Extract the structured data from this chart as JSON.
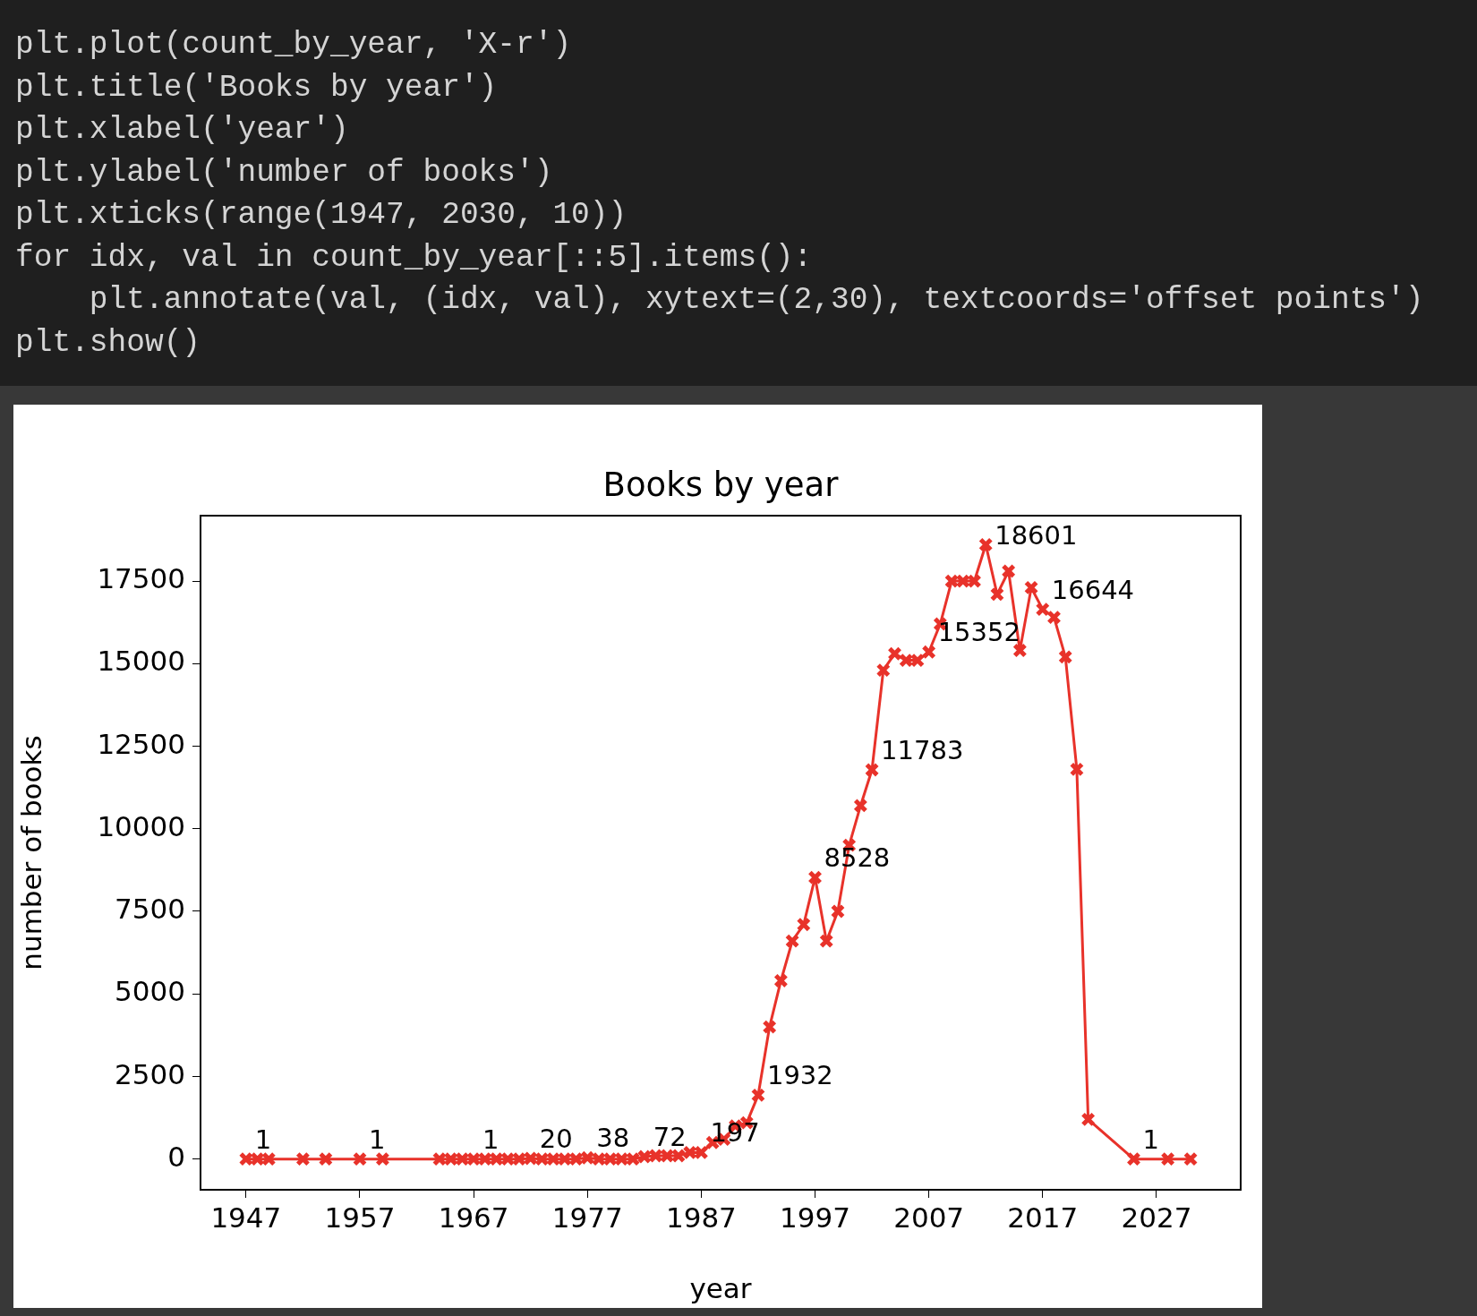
{
  "chart_data": {
    "type": "line",
    "title": "Books by year",
    "xlabel": "year",
    "ylabel": "number of books",
    "x": [
      1947,
      1948,
      1949,
      1952,
      1954,
      1957,
      1959,
      1964,
      1965,
      1966,
      1967,
      1968,
      1969,
      1970,
      1971,
      1972,
      1973,
      1974,
      1975,
      1976,
      1977,
      1978,
      1979,
      1980,
      1981,
      1982,
      1983,
      1984,
      1985,
      1986,
      1987,
      1988,
      1989,
      1990,
      1991,
      1992,
      1993,
      1994,
      1995,
      1996,
      1997,
      1998,
      1999,
      2000,
      2001,
      2002,
      2003,
      2004,
      2005,
      2006,
      2007,
      2008,
      2009,
      2010,
      2011,
      2012,
      2013,
      2014,
      2015,
      2016,
      2017,
      2018,
      2019,
      2020,
      2021,
      2025,
      2028,
      2030
    ],
    "series": [
      {
        "color": "#e8322a",
        "values": [
          1,
          0,
          0,
          0,
          0,
          1,
          0,
          0,
          0,
          0,
          1,
          0,
          0,
          0,
          0,
          20,
          0,
          0,
          0,
          0,
          38,
          0,
          0,
          0,
          0,
          72,
          100,
          100,
          100,
          200,
          197,
          500,
          600,
          1000,
          1100,
          1932,
          4000,
          5400,
          6600,
          7100,
          8528,
          6600,
          7500,
          9500,
          10700,
          11783,
          14800,
          15300,
          15100,
          15100,
          15352,
          16200,
          17500,
          17500,
          17500,
          18601,
          17100,
          17800,
          15400,
          17300,
          16644,
          16400,
          15200,
          11800,
          1200,
          1,
          0,
          0
        ],
        "value_labels": [
          "1",
          null,
          null,
          null,
          null,
          "1",
          null,
          null,
          null,
          null,
          "1",
          null,
          null,
          null,
          null,
          "20",
          null,
          null,
          null,
          null,
          "38",
          null,
          null,
          null,
          null,
          "72",
          null,
          null,
          null,
          null,
          "197",
          null,
          null,
          null,
          null,
          "1932",
          null,
          null,
          null,
          null,
          "8528",
          null,
          null,
          null,
          null,
          "11783",
          null,
          null,
          null,
          null,
          "15352",
          null,
          null,
          null,
          null,
          "18601",
          null,
          null,
          null,
          null,
          "16644",
          null,
          null,
          null,
          null,
          "1",
          null,
          null
        ]
      }
    ],
    "xlim": [
      1943,
      2034.4
    ],
    "xticks": [
      1947,
      1957,
      1967,
      1977,
      1987,
      1997,
      2007,
      2017,
      2027
    ],
    "ylim": [
      -930,
      19480
    ],
    "yticks": [
      0,
      2500,
      5000,
      7500,
      10000,
      12500,
      15000,
      17500
    ],
    "grid": false,
    "legend": false,
    "marker": "cross",
    "line_style": "solid",
    "annotations": [
      "plt.plot(count_by_year, 'X-r')",
      "plt.title('Books by year')",
      "plt.xlabel('year')",
      "plt.ylabel('number of books')",
      "plt.xticks(range(1947, 2030, 10))",
      "for idx, val in count_by_year[::5].items():",
      "    plt.annotate(val, (idx, val), xytext=(2,30), textcoords='offset points')",
      "plt.show()"
    ]
  }
}
